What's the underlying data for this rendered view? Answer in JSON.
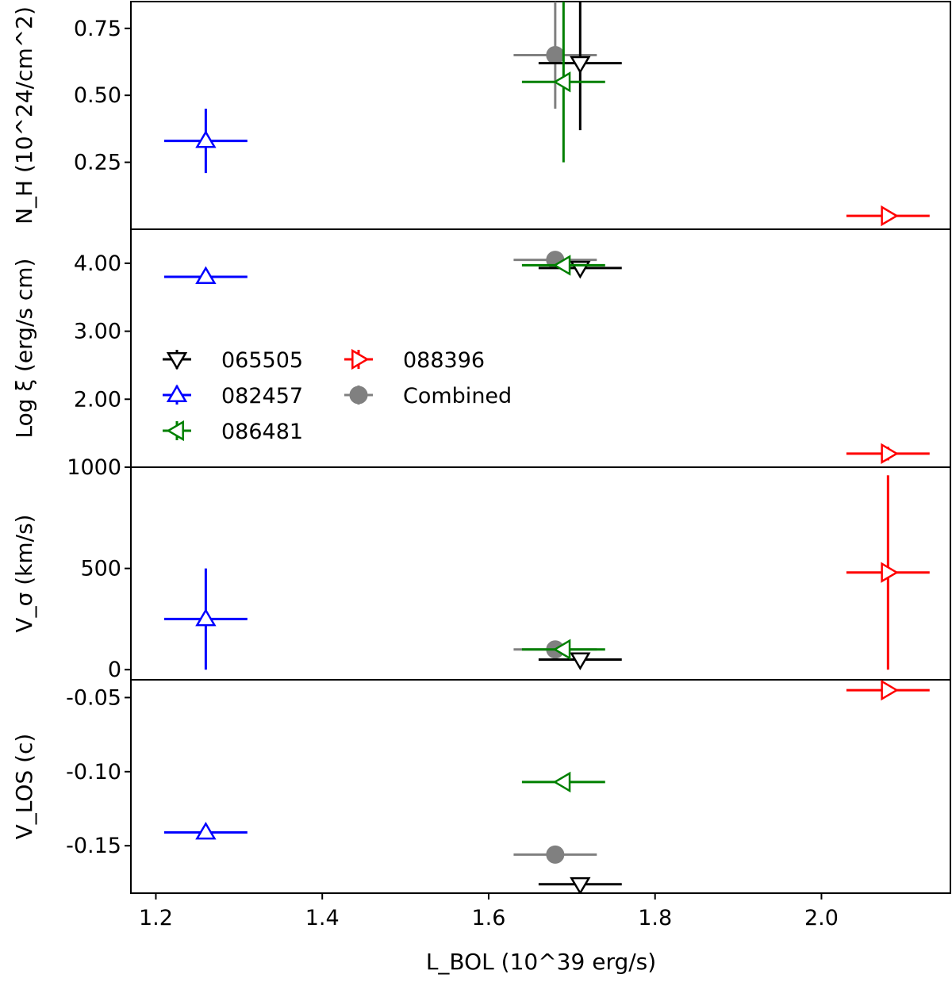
{
  "chart_data": {
    "type": "scatter",
    "xlabel": "L_BOL (10^39 erg/s)",
    "xlim": [
      1.17,
      2.155
    ],
    "x_ticks": [
      "1.2",
      "1.4",
      "1.6",
      "1.8",
      "2.0"
    ],
    "colors": {
      "065505": "#000000",
      "082457": "#0000ff",
      "086481": "#008000",
      "088396": "#ff0000",
      "Combined": "#808080"
    },
    "legend": [
      {
        "name": "065505",
        "marker": "triangle-down"
      },
      {
        "name": "082457",
        "marker": "triangle-up"
      },
      {
        "name": "086481",
        "marker": "triangle-left"
      },
      {
        "name": "088396",
        "marker": "triangle-right"
      },
      {
        "name": "Combined",
        "marker": "circle"
      }
    ],
    "panels": [
      {
        "id": "nh",
        "ylabel": "N_H (10^24/cm^2)",
        "ylim": [
          0.0,
          0.85
        ],
        "y_ticks": [
          {
            "value": 0.25,
            "label": "0.25"
          },
          {
            "value": 0.5,
            "label": "0.50"
          },
          {
            "value": 0.75,
            "label": "0.75"
          }
        ],
        "points": [
          {
            "series": "065505",
            "x": 1.71,
            "xerr": 0.05,
            "y": 0.62,
            "yerr_low": 0.25,
            "yerr_high": 0.25
          },
          {
            "series": "082457",
            "x": 1.26,
            "xerr": 0.05,
            "y": 0.33,
            "yerr_low": 0.12,
            "yerr_high": 0.12
          },
          {
            "series": "086481",
            "x": 1.69,
            "xerr": 0.05,
            "y": 0.55,
            "yerr_low": 0.3,
            "yerr_high": 0.3
          },
          {
            "series": "088396",
            "x": 2.08,
            "xerr": 0.05,
            "y": 0.05,
            "yerr_low": 0.0,
            "yerr_high": 0.0
          },
          {
            "series": "Combined",
            "x": 1.68,
            "xerr": 0.05,
            "y": 0.65,
            "yerr_low": 0.2,
            "yerr_high": 0.2
          }
        ]
      },
      {
        "id": "logxi",
        "ylabel": "Log ξ (erg/s cm)",
        "ylim": [
          1.0,
          4.5
        ],
        "y_ticks": [
          {
            "value": 2.0,
            "label": "2.00"
          },
          {
            "value": 3.0,
            "label": "3.00"
          },
          {
            "value": 4.0,
            "label": "4.00"
          }
        ],
        "points": [
          {
            "series": "065505",
            "x": 1.71,
            "xerr": 0.05,
            "y": 3.93,
            "yerr_low": 0.05,
            "yerr_high": 0.05
          },
          {
            "series": "082457",
            "x": 1.26,
            "xerr": 0.05,
            "y": 3.8,
            "yerr_low": 0.08,
            "yerr_high": 0.08
          },
          {
            "series": "086481",
            "x": 1.69,
            "xerr": 0.05,
            "y": 3.97,
            "yerr_low": 0.05,
            "yerr_high": 0.05
          },
          {
            "series": "088396",
            "x": 2.08,
            "xerr": 0.05,
            "y": 1.2,
            "yerr_low": 0.1,
            "yerr_high": 0.1
          },
          {
            "series": "Combined",
            "x": 1.68,
            "xerr": 0.05,
            "y": 4.05,
            "yerr_low": 0.02,
            "yerr_high": 0.02
          }
        ]
      },
      {
        "id": "vsigma",
        "ylabel": "V_σ (km/s)",
        "ylim": [
          -50,
          1000
        ],
        "y_ticks": [
          {
            "value": 0,
            "label": "0"
          },
          {
            "value": 500,
            "label": "500"
          },
          {
            "value": 1000,
            "label": "1000"
          }
        ],
        "points": [
          {
            "series": "065505",
            "x": 1.71,
            "xerr": 0.05,
            "y": 50,
            "yerr_low": 0,
            "yerr_high": 0
          },
          {
            "series": "082457",
            "x": 1.26,
            "xerr": 0.05,
            "y": 250,
            "yerr_low": 250,
            "yerr_high": 250
          },
          {
            "series": "086481",
            "x": 1.69,
            "xerr": 0.05,
            "y": 100,
            "yerr_low": 0,
            "yerr_high": 0
          },
          {
            "series": "088396",
            "x": 2.08,
            "xerr": 0.05,
            "y": 480,
            "yerr_low": 480,
            "yerr_high": 480
          },
          {
            "series": "Combined",
            "x": 1.68,
            "xerr": 0.05,
            "y": 100,
            "yerr_low": 0,
            "yerr_high": 0
          }
        ]
      },
      {
        "id": "vlos",
        "ylabel": "V_LOS (c)",
        "ylim": [
          -0.182,
          -0.038
        ],
        "y_ticks": [
          {
            "value": -0.15,
            "label": "-0.15"
          },
          {
            "value": -0.1,
            "label": "-0.10"
          },
          {
            "value": -0.05,
            "label": "-0.05"
          }
        ],
        "points": [
          {
            "series": "065505",
            "x": 1.71,
            "xerr": 0.05,
            "y": -0.176,
            "yerr_low": 0,
            "yerr_high": 0
          },
          {
            "series": "082457",
            "x": 1.26,
            "xerr": 0.05,
            "y": -0.141,
            "yerr_low": 0,
            "yerr_high": 0
          },
          {
            "series": "086481",
            "x": 1.69,
            "xerr": 0.05,
            "y": -0.107,
            "yerr_low": 0,
            "yerr_high": 0
          },
          {
            "series": "088396",
            "x": 2.08,
            "xerr": 0.05,
            "y": -0.045,
            "yerr_low": 0,
            "yerr_high": 0
          },
          {
            "series": "Combined",
            "x": 1.68,
            "xerr": 0.05,
            "y": -0.156,
            "yerr_low": 0,
            "yerr_high": 0
          }
        ]
      }
    ]
  }
}
